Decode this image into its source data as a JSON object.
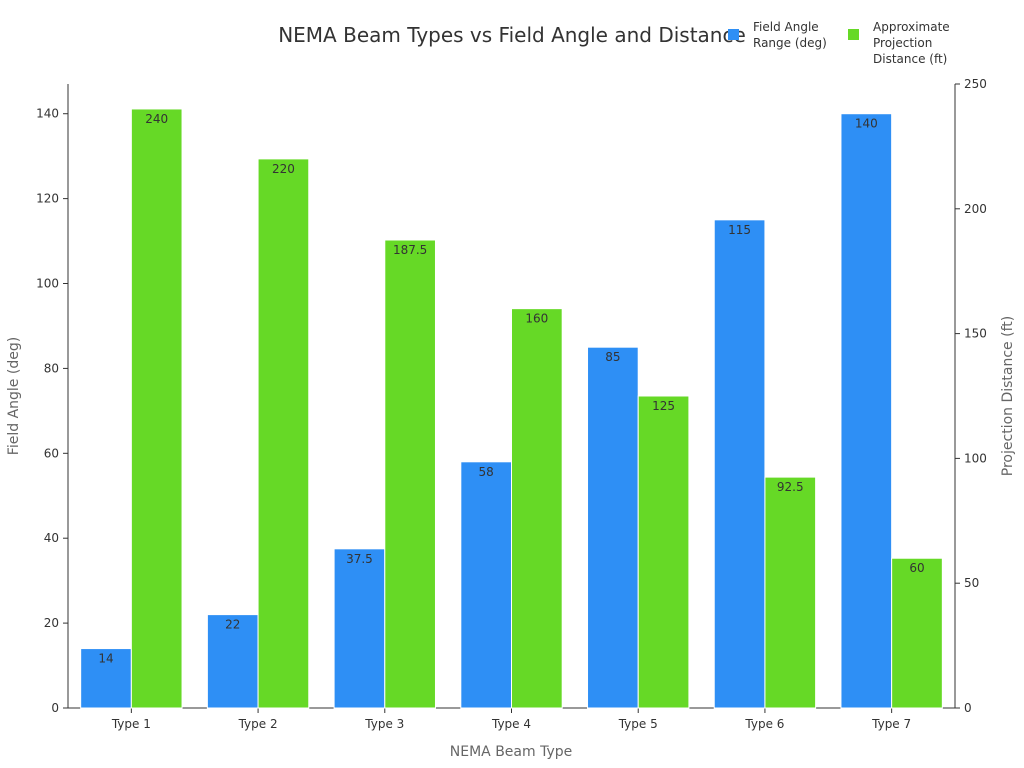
{
  "chart_data": {
    "type": "bar",
    "title": "NEMA Beam Types vs Field Angle and Distance",
    "xlabel": "NEMA Beam Type",
    "ylabel_left": "Field Angle (deg)",
    "ylabel_right": "Projection Distance (ft)",
    "categories": [
      "Type 1",
      "Type 2",
      "Type 3",
      "Type 4",
      "Type 5",
      "Type 6",
      "Type 7"
    ],
    "series": [
      {
        "name": "Field Angle\nRange (deg)",
        "axis": "left",
        "color": "#2e8ff5",
        "values": [
          14,
          22,
          37.5,
          58,
          85,
          115,
          140
        ],
        "labels": [
          "14",
          "22",
          "37.5",
          "58",
          "85",
          "115",
          "140"
        ]
      },
      {
        "name": "Approximate\nProjection\nDistance (ft)",
        "axis": "right",
        "color": "#66d926",
        "values": [
          240,
          220,
          187.5,
          160,
          125,
          92.5,
          60
        ],
        "labels": [
          "240",
          "220",
          "187.5",
          "160",
          "125",
          "92.5",
          "60"
        ]
      }
    ],
    "ylim_left": [
      0,
      147
    ],
    "ylim_right": [
      0,
      250
    ],
    "yticks_left": [
      "0",
      "20",
      "40",
      "60",
      "80",
      "100",
      "120",
      "140"
    ],
    "yticks_right": [
      "0",
      "50",
      "100",
      "150",
      "200",
      "250"
    ],
    "grid": false,
    "legend_position": "top-right"
  }
}
